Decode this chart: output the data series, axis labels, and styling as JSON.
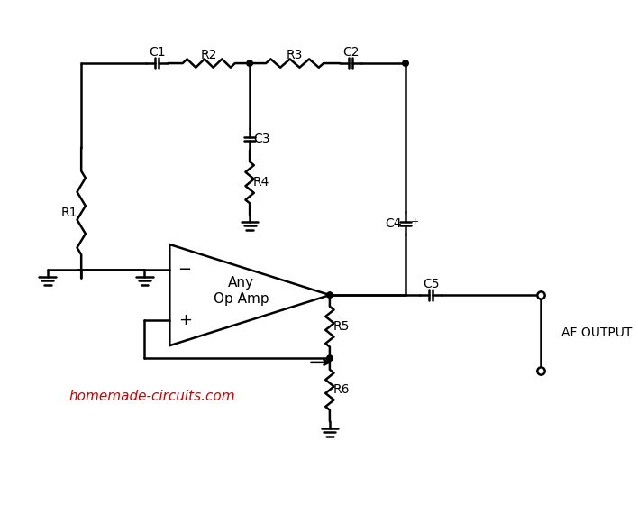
{
  "bg_color": "#ffffff",
  "line_color": "#000000",
  "watermark_color": "#cc0000",
  "watermark_text": "homemade-circuits.com",
  "af_output_text": "AF OUTPUT",
  "opamp_label_1": "Any",
  "opamp_label_2": "Op Amp"
}
